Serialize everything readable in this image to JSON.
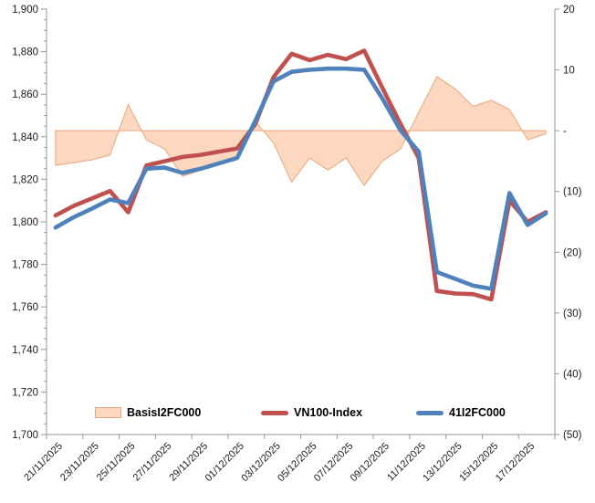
{
  "chart_data": {
    "type": "combo",
    "title": "",
    "x": [
      "21/11/2025",
      "22/11/2025",
      "23/11/2025",
      "24/11/2025",
      "25/11/2025",
      "26/11/2025",
      "27/11/2025",
      "28/11/2025",
      "29/11/2025",
      "30/11/2025",
      "01/12/2025",
      "02/12/2025",
      "03/12/2025",
      "04/12/2025",
      "05/12/2025",
      "06/12/2025",
      "07/12/2025",
      "08/12/2025",
      "09/12/2025",
      "10/12/2025",
      "11/12/2025",
      "12/12/2025",
      "13/12/2025",
      "14/12/2025",
      "15/12/2025",
      "16/12/2025",
      "17/12/2025",
      "18/12/2025"
    ],
    "x_tick_labels": [
      "21/11/2025",
      "23/11/2025",
      "25/11/2025",
      "27/11/2025",
      "29/11/2025",
      "01/12/2025",
      "03/12/2025",
      "05/12/2025",
      "07/12/2025",
      "09/12/2025",
      "11/12/2025",
      "13/12/2025",
      "15/12/2025",
      "17/12/2025"
    ],
    "x_label_every": 2,
    "series": [
      {
        "name": "BasisI2FC000",
        "type": "area",
        "axis": "right",
        "fill_color": "#FBD8BF",
        "line_color": "#E8A67E",
        "values": [
          -5.7,
          -5.3,
          -4.8,
          -4.0,
          4.3,
          -1.5,
          -3.0,
          -7.5,
          -6.5,
          -5.5,
          -4.5,
          1.5,
          -2.0,
          -8.5,
          -4.5,
          -6.5,
          -4.5,
          -9.0,
          -5.0,
          -3.0,
          3.0,
          8.9,
          6.9,
          4.0,
          5.0,
          3.5,
          -1.5,
          -0.5
        ]
      },
      {
        "name": "VN100-Index",
        "type": "line",
        "axis": "left",
        "line_color": "#C0504D",
        "values": [
          1803,
          1807.5,
          1811,
          1814.5,
          1804.5,
          1826.5,
          1828.5,
          1830.5,
          1831.5,
          1833,
          1834.5,
          1846,
          1868,
          1879,
          1876,
          1878.5,
          1876.5,
          1880.5,
          1863,
          1846,
          1830,
          1767.5,
          1766.3,
          1766,
          1763.5,
          1810,
          1800,
          1804.5
        ]
      },
      {
        "name": "41I2FC000",
        "type": "line",
        "axis": "left",
        "line_color": "#4F81BD",
        "values": [
          1797.3,
          1802.2,
          1806.2,
          1810.5,
          1808.8,
          1825,
          1825.5,
          1823,
          1825,
          1827.5,
          1830,
          1847.5,
          1866,
          1870.5,
          1871.5,
          1872,
          1872,
          1871.5,
          1858,
          1843,
          1833,
          1776.4,
          1773.2,
          1770,
          1768.5,
          1813.5,
          1798.5,
          1804
        ]
      }
    ],
    "left_axis": {
      "min": 1700,
      "max": 1900,
      "major": 20,
      "minor": 5,
      "tick_labels": [
        "1,700",
        "1,720",
        "1,740",
        "1,760",
        "1,780",
        "1,800",
        "1,820",
        "1,840",
        "1,860",
        "1,880",
        "1,900"
      ]
    },
    "right_axis": {
      "min": -50,
      "max": 20,
      "major": 10,
      "tick_labels": [
        "20",
        "10",
        "-",
        "(10)",
        "(20)",
        "(30)",
        "(40)",
        "(50)"
      ]
    },
    "grid": "off",
    "legend_position": "bottom-inside",
    "colors": {
      "axis_line": "#969696",
      "tick": "#969696",
      "text": "#1a1a1a"
    }
  },
  "legend": {
    "items": [
      {
        "label": "BasisI2FC000"
      },
      {
        "label": "VN100-Index"
      },
      {
        "label": "41I2FC000"
      }
    ]
  }
}
